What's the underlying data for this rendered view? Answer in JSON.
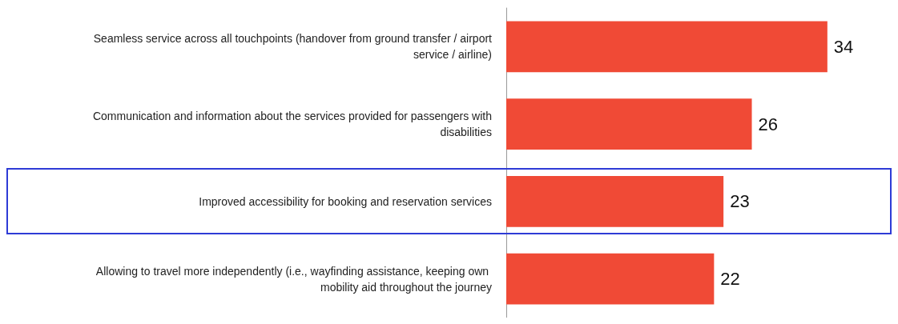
{
  "chart_data": {
    "type": "bar",
    "orientation": "horizontal",
    "categories": [
      "Seamless service across all touchpoints (handover from ground transfer / airport service / airline)",
      "Communication and information about the services provided for passengers with disabilities",
      "Improved accessibility for booking and reservation services",
      "Allowing to travel more independently (i.e., wayfinding assistance, keeping own mobility aid throughout the journey"
    ],
    "values": [
      34,
      26,
      23,
      22
    ],
    "color": "#f04a36",
    "data_labels": true
  }
}
